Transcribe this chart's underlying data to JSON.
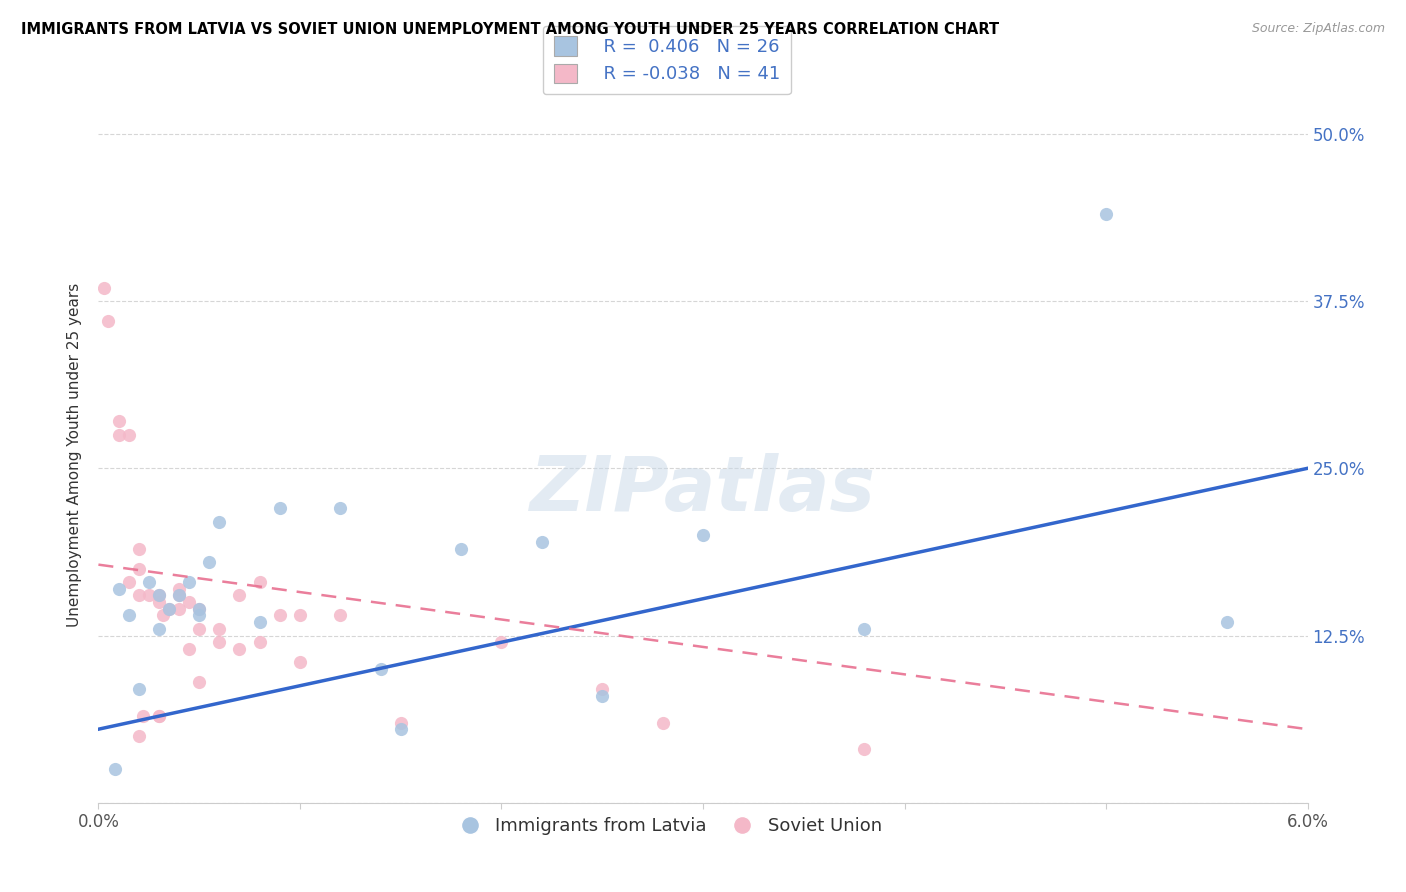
{
  "title": "IMMIGRANTS FROM LATVIA VS SOVIET UNION UNEMPLOYMENT AMONG YOUTH UNDER 25 YEARS CORRELATION CHART",
  "source": "Source: ZipAtlas.com",
  "ylabel_label": "Unemployment Among Youth under 25 years",
  "xlim": [
    0.0,
    0.06
  ],
  "ylim": [
    0.0,
    0.52
  ],
  "xticks": [
    0.0,
    0.01,
    0.02,
    0.03,
    0.04,
    0.05,
    0.06
  ],
  "xticklabels": [
    "0.0%",
    "",
    "",
    "",
    "",
    "",
    "6.0%"
  ],
  "ytick_vals": [
    0.0,
    0.125,
    0.25,
    0.375,
    0.5
  ],
  "ytick_labels": [
    "",
    "12.5%",
    "25.0%",
    "37.5%",
    "50.0%"
  ],
  "legend_r_latvia": "R =  0.406",
  "legend_n_latvia": "N = 26",
  "legend_r_soviet": "R = -0.038",
  "legend_n_soviet": "N = 41",
  "latvia_color": "#a8c4e0",
  "soviet_color": "#f4b8c8",
  "latvia_line_color": "#3366cc",
  "soviet_line_color": "#e87090",
  "watermark": "ZIPatlas",
  "scatter_latvia_x": [
    0.0008,
    0.001,
    0.0015,
    0.002,
    0.0025,
    0.003,
    0.003,
    0.0035,
    0.004,
    0.0045,
    0.005,
    0.005,
    0.0055,
    0.006,
    0.008,
    0.009,
    0.012,
    0.015,
    0.018,
    0.022,
    0.025,
    0.03,
    0.038,
    0.05,
    0.056,
    0.014
  ],
  "scatter_latvia_y": [
    0.025,
    0.16,
    0.14,
    0.085,
    0.165,
    0.13,
    0.155,
    0.145,
    0.155,
    0.165,
    0.145,
    0.14,
    0.18,
    0.21,
    0.135,
    0.22,
    0.22,
    0.055,
    0.19,
    0.195,
    0.08,
    0.2,
    0.13,
    0.44,
    0.135,
    0.1
  ],
  "scatter_soviet_x": [
    0.0003,
    0.0005,
    0.001,
    0.001,
    0.0015,
    0.0015,
    0.002,
    0.002,
    0.002,
    0.0022,
    0.0025,
    0.003,
    0.003,
    0.003,
    0.0032,
    0.0035,
    0.004,
    0.004,
    0.004,
    0.0045,
    0.0045,
    0.005,
    0.005,
    0.005,
    0.006,
    0.006,
    0.007,
    0.007,
    0.008,
    0.008,
    0.009,
    0.01,
    0.01,
    0.012,
    0.015,
    0.02,
    0.025,
    0.028,
    0.038,
    0.002,
    0.003
  ],
  "scatter_soviet_y": [
    0.385,
    0.36,
    0.285,
    0.275,
    0.165,
    0.275,
    0.19,
    0.155,
    0.175,
    0.065,
    0.155,
    0.065,
    0.155,
    0.15,
    0.14,
    0.145,
    0.155,
    0.145,
    0.16,
    0.115,
    0.15,
    0.09,
    0.145,
    0.13,
    0.12,
    0.13,
    0.115,
    0.155,
    0.12,
    0.165,
    0.14,
    0.14,
    0.105,
    0.14,
    0.06,
    0.12,
    0.085,
    0.06,
    0.04,
    0.05,
    0.065
  ],
  "latvia_line_x0": 0.0,
  "latvia_line_y0": 0.055,
  "latvia_line_x1": 0.06,
  "latvia_line_y1": 0.25,
  "soviet_line_x0": 0.0,
  "soviet_line_y0": 0.178,
  "soviet_line_x1": 0.06,
  "soviet_line_y1": 0.055
}
